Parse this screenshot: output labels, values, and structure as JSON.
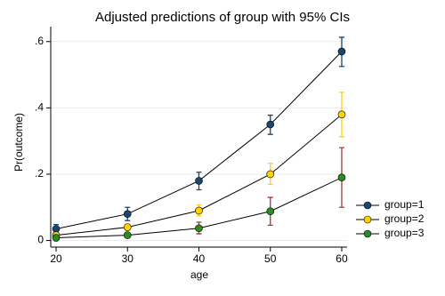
{
  "chart_data": {
    "type": "line",
    "title": "Adjusted predictions of group with 95% CIs",
    "x_label": "age",
    "y_label": "Pr(outcome)",
    "x": [
      20,
      30,
      40,
      50,
      60
    ],
    "xlim": [
      19.25,
      60.75
    ],
    "xticks": [
      20,
      30,
      40,
      50,
      60
    ],
    "ylim": [
      -0.02,
      0.645
    ],
    "yticks": [
      0,
      {
        "value": 0.2,
        "label": ".2"
      },
      {
        "value": 0.4,
        "label": ".4"
      },
      {
        "value": 0.6,
        "label": ".6"
      }
    ],
    "grid": true,
    "legend": "right",
    "line_color": "#000000",
    "series": [
      {
        "name": "group=1",
        "color": "#1a476f",
        "ci_color": "#1a476f",
        "values": [
          0.035,
          0.08,
          0.18,
          0.35,
          0.57
        ],
        "ci_low": [
          0.024,
          0.06,
          0.153,
          0.32,
          0.525
        ],
        "ci_high": [
          0.048,
          0.1,
          0.206,
          0.378,
          0.613
        ]
      },
      {
        "name": "group=2",
        "color": "#ffd200",
        "ci_color": "#ffd200",
        "values": [
          0.016,
          0.04,
          0.09,
          0.2,
          0.38
        ],
        "ci_low": [
          0.008,
          0.03,
          0.075,
          0.169,
          0.313
        ],
        "ci_high": [
          0.024,
          0.05,
          0.107,
          0.233,
          0.447
        ]
      },
      {
        "name": "group=3",
        "color": "#2b8b24",
        "ci_color": "#a03b3b",
        "values": [
          0.008,
          0.016,
          0.037,
          0.088,
          0.19
        ],
        "ci_low": [
          0.004,
          0.01,
          0.02,
          0.046,
          0.1
        ],
        "ci_high": [
          0.012,
          0.022,
          0.055,
          0.13,
          0.28
        ]
      }
    ]
  }
}
